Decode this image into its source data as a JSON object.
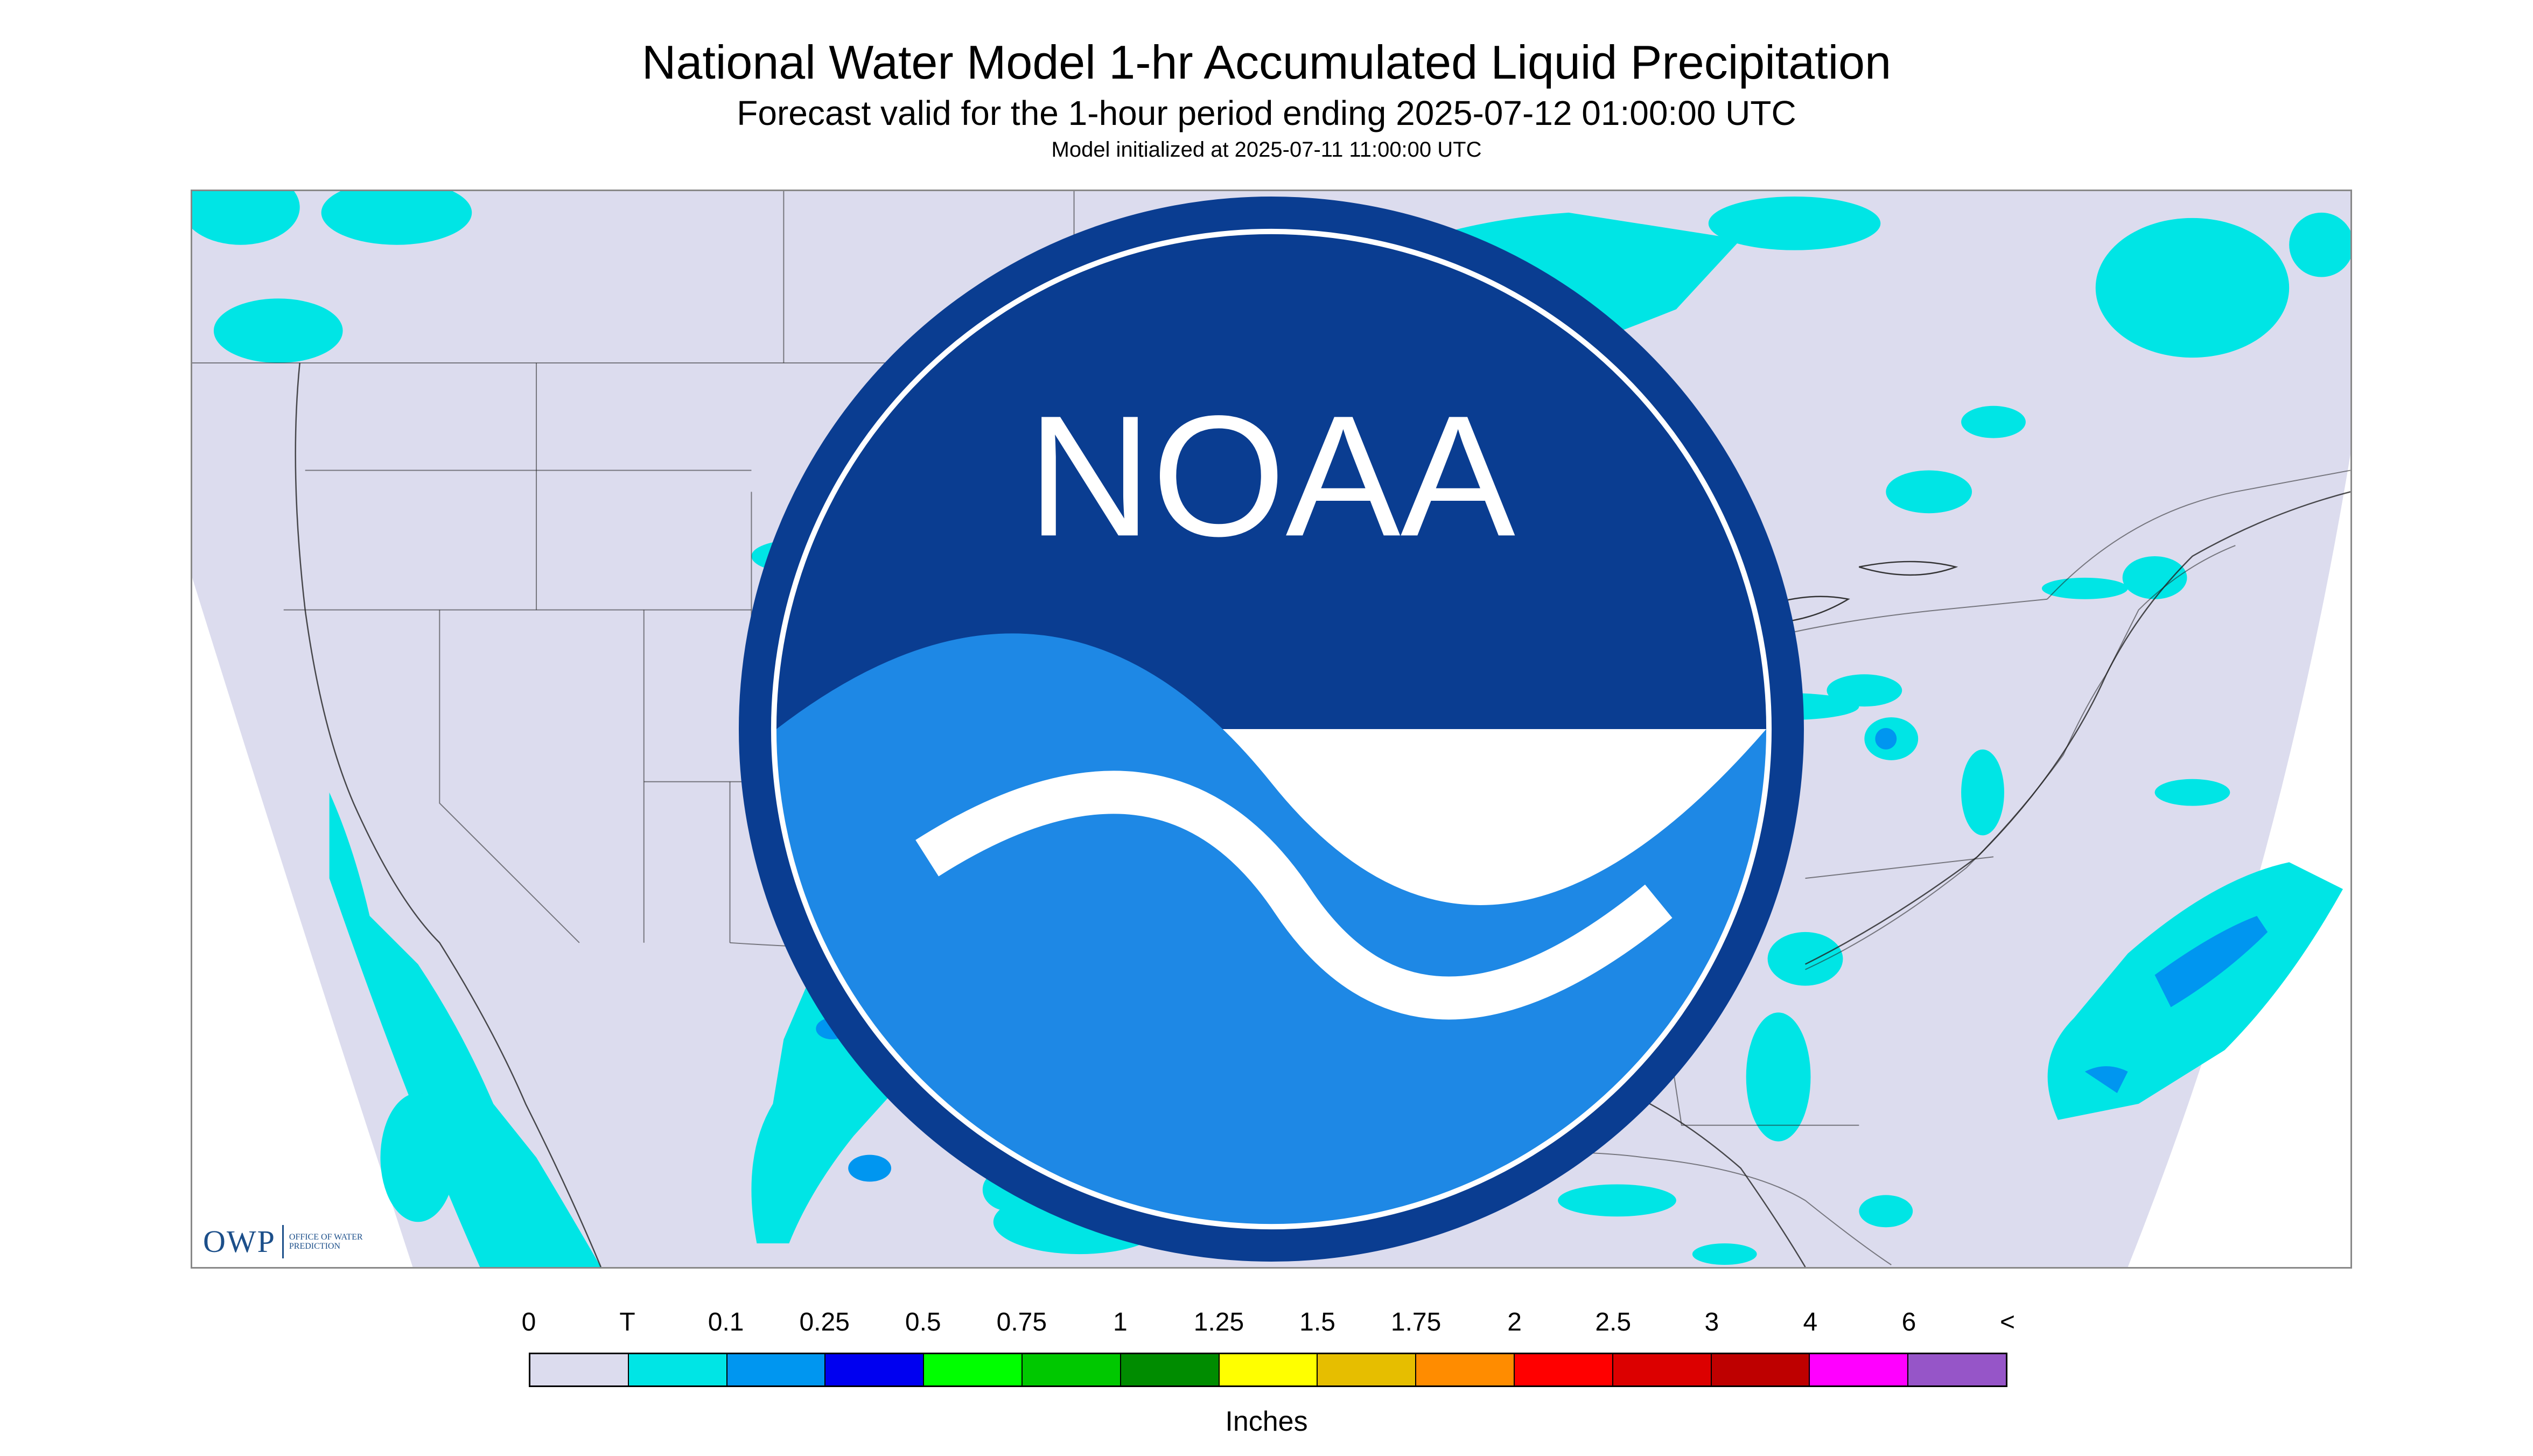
{
  "header": {
    "title": "National Water Model 1-hr Accumulated Liquid Precipitation",
    "subtitle": "Forecast valid for the 1-hour period ending 2025-07-12 01:00:00 UTC",
    "init": "Model initialized at 2025-07-11 11:00:00 UTC"
  },
  "logos": {
    "owp_mark": "OWP",
    "owp_text": "Office of Water Prediction",
    "noaa_text": "NOAA"
  },
  "legend": {
    "labels": [
      "0",
      "T",
      "0.1",
      "0.25",
      "0.5",
      "0.75",
      "1",
      "1.25",
      "1.5",
      "1.75",
      "2",
      "2.5",
      "3",
      "4",
      "6",
      "<"
    ],
    "colors": [
      "#dcdcee",
      "#00e5e5",
      "#0096f0",
      "#0000f0",
      "#00ff00",
      "#00c800",
      "#008c00",
      "#ffff00",
      "#e6be00",
      "#ff8c00",
      "#ff0000",
      "#dc0000",
      "#be0000",
      "#ff00ff",
      "#9655c8"
    ],
    "units": "Inches"
  },
  "map": {
    "background_color": "#dcdcee",
    "outside_color": "#ffffff",
    "light_rain_color": "#00e5e5",
    "moderate_rain_color": "#0096f0",
    "heavy_rain_color": "#0000f0",
    "very_heavy_rain_color": "#00ff00",
    "boundary_color": "#222222"
  }
}
